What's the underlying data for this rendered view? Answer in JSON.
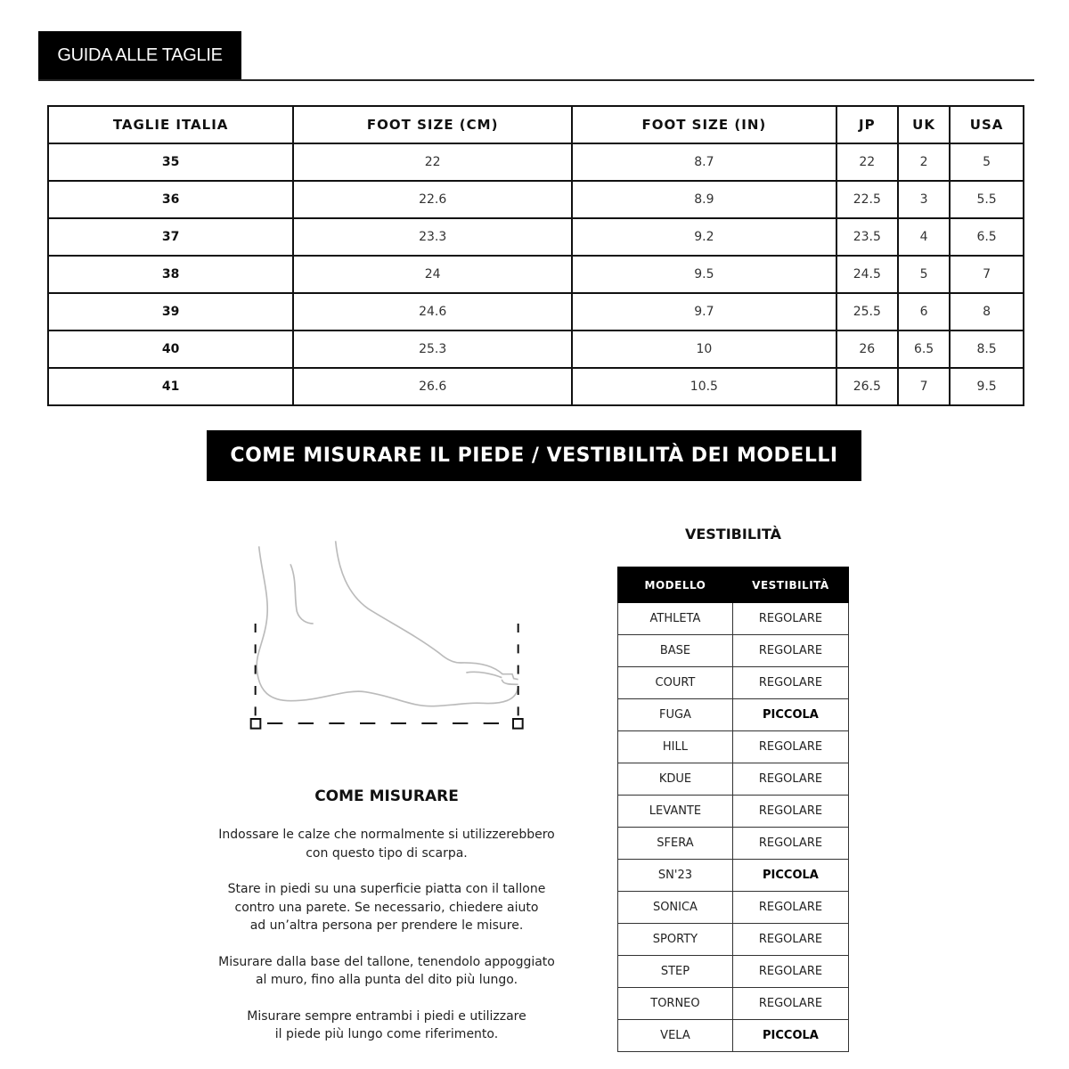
{
  "header": {
    "title": "GUIDA ALLE TAGLIE"
  },
  "sizes": {
    "columns": [
      "TAGLIE ITALIA",
      "FOOT SIZE (CM)",
      "FOOT SIZE (IN)",
      "JP",
      "UK",
      "USA"
    ],
    "rows": [
      [
        "35",
        "22",
        "8.7",
        "22",
        "2",
        "5"
      ],
      [
        "36",
        "22.6",
        "8.9",
        "22.5",
        "3",
        "5.5"
      ],
      [
        "37",
        "23.3",
        "9.2",
        "23.5",
        "4",
        "6.5"
      ],
      [
        "38",
        "24",
        "9.5",
        "24.5",
        "5",
        "7"
      ],
      [
        "39",
        "24.6",
        "9.7",
        "25.5",
        "6",
        "8"
      ],
      [
        "40",
        "25.3",
        "10",
        "26",
        "6.5",
        "8.5"
      ],
      [
        "41",
        "26.6",
        "10.5",
        "26.5",
        "7",
        "9.5"
      ]
    ]
  },
  "banner": "COME MISURARE IL PIEDE / VESTIBILITÀ DEI MODELLI",
  "howto": {
    "title": "COME MISURARE",
    "paragraphs": [
      [
        "Indossare le calze che normalmente si utilizzerebbero",
        "con questo tipo di scarpa."
      ],
      [
        "Stare in piedi su una superficie piatta con il tallone",
        "contro una parete. Se necessario, chiedere aiuto",
        "ad un’altra persona per prendere le misure."
      ],
      [
        "Misurare dalla base del tallone, tenendolo appoggiato",
        "al muro, fino alla punta del dito più lungo."
      ],
      [
        "Misurare sempre entrambi i piedi e utilizzare",
        "il piede più lungo come riferimento."
      ]
    ]
  },
  "fit": {
    "title": "VESTIBILITÀ",
    "columns": [
      "MODELLO",
      "VESTIBILITÀ"
    ],
    "rows": [
      [
        "ATHLETA",
        "REGOLARE"
      ],
      [
        "BASE",
        "REGOLARE"
      ],
      [
        "COURT",
        "REGOLARE"
      ],
      [
        "FUGA",
        "PICCOLA"
      ],
      [
        "HILL",
        "REGOLARE"
      ],
      [
        "KDUE",
        "REGOLARE"
      ],
      [
        "LEVANTE",
        "REGOLARE"
      ],
      [
        "SFERA",
        "REGOLARE"
      ],
      [
        "SN'23",
        "PICCOLA"
      ],
      [
        "SONICA",
        "REGOLARE"
      ],
      [
        "SPORTY",
        "REGOLARE"
      ],
      [
        "STEP",
        "REGOLARE"
      ],
      [
        "TORNEO",
        "REGOLARE"
      ],
      [
        "VELA",
        "PICCOLA"
      ]
    ]
  }
}
